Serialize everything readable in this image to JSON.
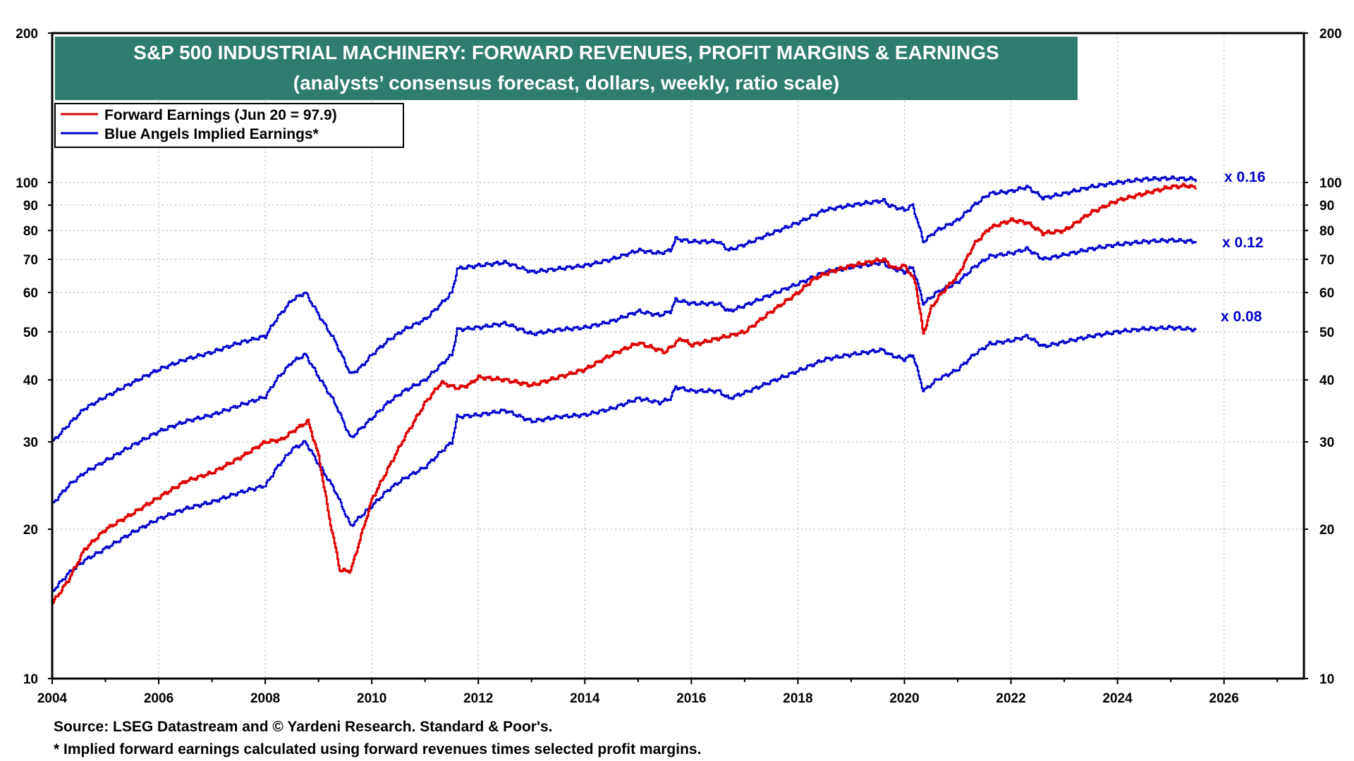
{
  "chart_data": {
    "type": "line",
    "title": "S&P 500 INDUSTRIAL MACHINERY: FORWARD REVENUES, PROFIT MARGINS & EARNINGS",
    "subtitle": "(analysts’ consensus forecast, dollars, weekly, ratio scale)",
    "xlabel": "",
    "ylabel": "",
    "y_scale": "log",
    "ylim": [
      10,
      200
    ],
    "xlim": [
      2004,
      2027.5
    ],
    "y_ticks": [
      10,
      20,
      30,
      40,
      50,
      60,
      70,
      80,
      90,
      100,
      200
    ],
    "x_ticks": [
      2004,
      2006,
      2008,
      2010,
      2012,
      2014,
      2016,
      2018,
      2020,
      2022,
      2024,
      2026
    ],
    "grid": true,
    "legend_placement": "top-left",
    "legend": [
      {
        "label": "Forward Earnings (Jun 20 = 97.9)",
        "color": "#dd0000"
      },
      {
        "label": "Blue Angels Implied Earnings*",
        "color": "#0000cc"
      }
    ],
    "annotations": [
      "x 0.16",
      "x 0.12",
      "x 0.08"
    ],
    "footnotes": [
      "Source: LSEG Datastream and © Yardeni Research. Standard & Poor's.",
      "* Implied forward earnings calculated using forward revenues times selected profit margins."
    ],
    "series": [
      {
        "name": "Forward Earnings (Jun 20 = 97.9)",
        "color": "#dd0000",
        "x": [
          2004.0,
          2004.3,
          2004.6,
          2005.0,
          2005.5,
          2006.0,
          2006.5,
          2007.0,
          2007.5,
          2008.0,
          2008.3,
          2008.6,
          2008.8,
          2009.0,
          2009.2,
          2009.4,
          2009.6,
          2009.8,
          2010.0,
          2010.3,
          2010.6,
          2011.0,
          2011.3,
          2011.6,
          2011.8,
          2012.0,
          2012.5,
          2013.0,
          2013.5,
          2014.0,
          2014.5,
          2015.0,
          2015.5,
          2015.8,
          2016.0,
          2016.5,
          2017.0,
          2017.5,
          2018.0,
          2018.3,
          2018.6,
          2019.0,
          2019.3,
          2019.6,
          2019.8,
          2020.0,
          2020.2,
          2020.35,
          2020.5,
          2020.7,
          2021.0,
          2021.3,
          2021.6,
          2022.0,
          2022.3,
          2022.6,
          2023.0,
          2023.5,
          2024.0,
          2024.5,
          2025.0,
          2025.3,
          2025.47
        ],
        "values": [
          14.2,
          15.8,
          18.2,
          20.0,
          21.5,
          23.2,
          25.0,
          26.0,
          27.8,
          30.0,
          30.3,
          32.0,
          33.0,
          28.0,
          21.0,
          16.5,
          16.5,
          19.5,
          23.0,
          26.5,
          30.5,
          36.0,
          39.5,
          38.5,
          39.0,
          40.5,
          40.0,
          39.0,
          40.5,
          42.0,
          45.0,
          47.5,
          45.5,
          48.5,
          47.0,
          48.5,
          50.0,
          55.0,
          60.0,
          64.0,
          66.0,
          68.0,
          69.0,
          70.0,
          67.0,
          68.0,
          63.0,
          49.5,
          56.0,
          60.0,
          65.0,
          75.0,
          81.0,
          84.0,
          83.0,
          79.0,
          80.0,
          87.0,
          92.0,
          95.0,
          98.0,
          98.5,
          97.5
        ]
      },
      {
        "name": "Blue Angels Implied Earnings* (x 0.16)",
        "color": "#0000cc",
        "x": [
          2004.0,
          2004.3,
          2004.6,
          2005.0,
          2005.5,
          2006.0,
          2006.5,
          2007.0,
          2007.5,
          2008.0,
          2008.2,
          2008.5,
          2008.75,
          2009.0,
          2009.3,
          2009.6,
          2009.8,
          2010.0,
          2010.3,
          2010.6,
          2011.0,
          2011.3,
          2011.5,
          2011.6,
          2012.0,
          2012.5,
          2013.0,
          2013.5,
          2014.0,
          2014.5,
          2015.0,
          2015.4,
          2015.6,
          2015.7,
          2016.0,
          2016.5,
          2016.7,
          2017.0,
          2017.5,
          2018.0,
          2018.5,
          2019.0,
          2019.6,
          2019.7,
          2020.0,
          2020.15,
          2020.35,
          2020.6,
          2021.0,
          2021.3,
          2021.6,
          2022.0,
          2022.3,
          2022.6,
          2023.0,
          2023.5,
          2024.0,
          2024.5,
          2025.0,
          2025.47
        ],
        "values": [
          30.0,
          32.5,
          35.0,
          37.0,
          39.5,
          42.0,
          44.0,
          45.5,
          47.5,
          49.0,
          53.0,
          58.0,
          60.0,
          54.0,
          48.0,
          41.0,
          42.5,
          45.0,
          48.0,
          50.5,
          53.0,
          57.0,
          60.0,
          67.0,
          68.0,
          69.0,
          66.0,
          67.0,
          68.0,
          70.0,
          73.0,
          72.0,
          73.0,
          77.0,
          76.0,
          76.0,
          73.0,
          75.0,
          79.0,
          83.0,
          88.0,
          90.0,
          92.0,
          90.0,
          88.0,
          90.0,
          76.0,
          80.0,
          84.0,
          90.0,
          95.0,
          96.0,
          98.0,
          93.0,
          95.0,
          98.0,
          100.0,
          101.5,
          102.0,
          101.5
        ]
      },
      {
        "name": "Blue Angels Implied Earnings* (x 0.12)",
        "color": "#0000cc",
        "x": [
          2004.0,
          2004.3,
          2004.6,
          2005.0,
          2005.5,
          2006.0,
          2006.5,
          2007.0,
          2007.5,
          2008.0,
          2008.2,
          2008.5,
          2008.75,
          2009.0,
          2009.3,
          2009.6,
          2009.8,
          2010.0,
          2010.3,
          2010.6,
          2011.0,
          2011.3,
          2011.5,
          2011.6,
          2012.0,
          2012.5,
          2013.0,
          2013.5,
          2014.0,
          2014.5,
          2015.0,
          2015.4,
          2015.6,
          2015.7,
          2016.0,
          2016.5,
          2016.7,
          2017.0,
          2017.5,
          2018.0,
          2018.5,
          2019.0,
          2019.6,
          2019.7,
          2020.0,
          2020.15,
          2020.35,
          2020.6,
          2021.0,
          2021.3,
          2021.6,
          2022.0,
          2022.3,
          2022.6,
          2023.0,
          2023.5,
          2024.0,
          2024.5,
          2025.0,
          2025.47
        ],
        "values": [
          22.5,
          24.5,
          26.0,
          27.5,
          29.5,
          31.5,
          33.0,
          34.0,
          35.5,
          37.0,
          40.0,
          43.5,
          45.0,
          40.5,
          36.0,
          30.5,
          32.0,
          33.5,
          36.0,
          38.0,
          40.0,
          43.0,
          45.0,
          50.5,
          51.0,
          52.0,
          49.5,
          50.5,
          51.0,
          52.5,
          55.0,
          54.0,
          55.0,
          58.0,
          57.0,
          57.0,
          55.0,
          56.5,
          59.5,
          62.5,
          66.0,
          67.5,
          69.0,
          67.5,
          66.0,
          67.5,
          57.0,
          60.0,
          63.0,
          67.5,
          71.0,
          72.0,
          73.5,
          70.0,
          71.5,
          73.5,
          75.0,
          76.0,
          76.5,
          76.0
        ]
      },
      {
        "name": "Blue Angels Implied Earnings* (x 0.08)",
        "color": "#0000cc",
        "x": [
          2004.0,
          2004.3,
          2004.6,
          2005.0,
          2005.5,
          2006.0,
          2006.5,
          2007.0,
          2007.5,
          2008.0,
          2008.2,
          2008.5,
          2008.75,
          2009.0,
          2009.3,
          2009.6,
          2009.8,
          2010.0,
          2010.3,
          2010.6,
          2011.0,
          2011.3,
          2011.5,
          2011.6,
          2012.0,
          2012.5,
          2013.0,
          2013.5,
          2014.0,
          2014.5,
          2015.0,
          2015.4,
          2015.6,
          2015.7,
          2016.0,
          2016.5,
          2016.7,
          2017.0,
          2017.5,
          2018.0,
          2018.5,
          2019.0,
          2019.6,
          2019.7,
          2020.0,
          2020.15,
          2020.35,
          2020.6,
          2021.0,
          2021.3,
          2021.6,
          2022.0,
          2022.3,
          2022.6,
          2023.0,
          2023.5,
          2024.0,
          2024.5,
          2025.0,
          2025.47
        ],
        "values": [
          15.0,
          16.3,
          17.3,
          18.3,
          19.7,
          21.0,
          22.0,
          22.7,
          23.7,
          24.5,
          26.5,
          29.0,
          30.0,
          27.0,
          24.0,
          20.3,
          21.3,
          22.3,
          24.0,
          25.3,
          26.7,
          28.7,
          30.0,
          33.7,
          34.0,
          34.7,
          33.0,
          33.7,
          34.0,
          35.0,
          36.7,
          36.0,
          36.7,
          38.7,
          38.0,
          38.0,
          36.7,
          37.7,
          39.7,
          41.7,
          44.0,
          45.0,
          46.0,
          45.0,
          44.0,
          45.0,
          38.0,
          40.0,
          42.0,
          45.0,
          47.3,
          48.0,
          49.0,
          46.7,
          47.7,
          49.0,
          50.0,
          50.7,
          51.0,
          50.5
        ]
      }
    ]
  }
}
